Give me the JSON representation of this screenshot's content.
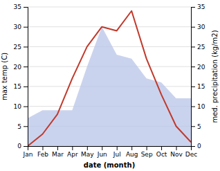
{
  "chart_data": {
    "type": "line",
    "xlabel": "date (month)",
    "ylabel": "max temp (C)",
    "y2label": "med. precipitation (kg/m2)",
    "categories": [
      "Jan",
      "Feb",
      "Mar",
      "Apr",
      "May",
      "Jun",
      "Jul",
      "Aug",
      "Sep",
      "Oct",
      "Nov",
      "Dec"
    ],
    "series": [
      {
        "type": "area",
        "axis": "y2",
        "color": "#b8c4e8",
        "values": [
          7,
          9,
          9,
          9,
          20,
          30,
          23,
          22,
          17,
          16,
          12,
          12
        ]
      },
      {
        "type": "line",
        "color": "#c0392b",
        "values": [
          0,
          3,
          8,
          17,
          25,
          30,
          29,
          34,
          22,
          13,
          5,
          1
        ]
      }
    ],
    "ylim": [
      0,
      35
    ],
    "yticks": [
      0,
      5,
      10,
      15,
      20,
      25,
      30,
      35
    ],
    "y2lim": [
      0,
      35
    ],
    "y2ticks": [
      0,
      5,
      10,
      15,
      20,
      25,
      30,
      35
    ],
    "grid": true
  }
}
